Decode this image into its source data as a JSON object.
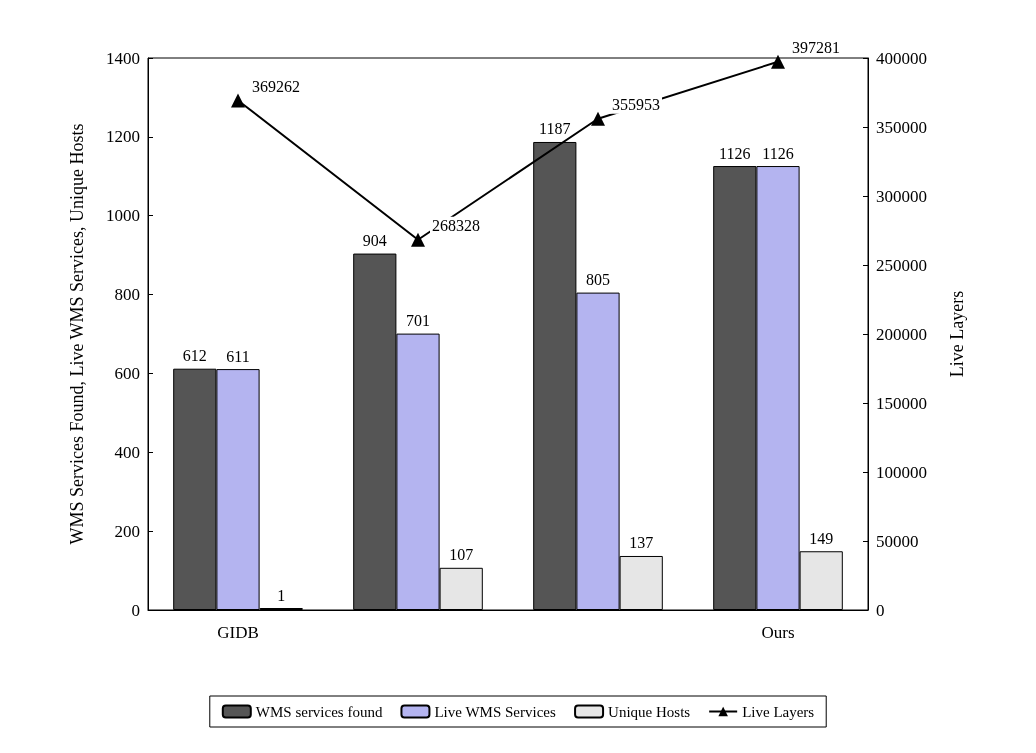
{
  "chart_data": {
    "type": "bar",
    "categories": [
      "GIDB",
      null,
      null,
      "Ours"
    ],
    "ylabel": "WMS Services Found, Live WMS Services, Unique Hosts",
    "y2label": "Live Layers",
    "ylim": [
      0,
      1400
    ],
    "yticks": [
      0,
      200,
      400,
      600,
      800,
      1000,
      1200,
      1400
    ],
    "y2lim": [
      0,
      400000
    ],
    "y2ticks": [
      0,
      50000,
      100000,
      150000,
      200000,
      250000,
      300000,
      350000,
      400000
    ],
    "series": [
      {
        "name": "WMS services found",
        "color": "#555555",
        "values": [
          612,
          904,
          1187,
          1126
        ]
      },
      {
        "name": "Live WMS Services",
        "color": "#b4b4f0",
        "values": [
          611,
          701,
          805,
          1126
        ]
      },
      {
        "name": "Unique Hosts",
        "color": "#e6e6e6",
        "values": [
          1,
          107,
          137,
          149
        ]
      },
      {
        "name": "Live Layers",
        "type": "line",
        "axis": "y2",
        "color": "#000000",
        "values": [
          369262,
          268328,
          355953,
          397281
        ],
        "marker": "triangle"
      }
    ],
    "data_labels": true,
    "legend": "bottom",
    "grid": false
  }
}
